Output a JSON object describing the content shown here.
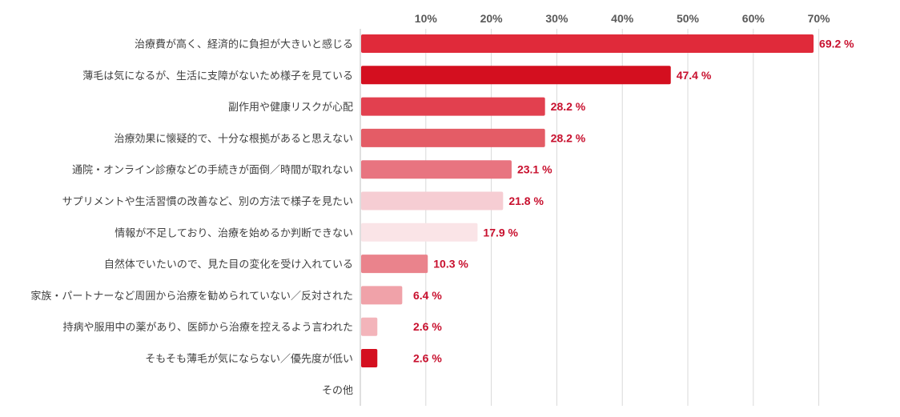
{
  "chart_data": {
    "type": "bar",
    "orientation": "horizontal",
    "title": "",
    "xlabel": "",
    "ylabel": "",
    "xlim": [
      0,
      70
    ],
    "tick_values": [
      10,
      20,
      30,
      40,
      50,
      60,
      70
    ],
    "tick_labels": [
      "10%",
      "20%",
      "30%",
      "40%",
      "50%",
      "60%",
      "70%"
    ],
    "grid": true,
    "value_suffix": " %",
    "categories": [
      "治療費が高く、経済的に負担が大きいと感じる",
      "薄毛は気になるが、生活に支障がないため様子を見ている",
      "副作用や健康リスクが心配",
      "治療効果に懐疑的で、十分な根拠があると思えない",
      "通院・オンライン診療などの手続きが面倒／時間が取れない",
      "サプリメントや生活習慣の改善など、別の方法で様子を見たい",
      "情報が不足しており、治療を始めるか判断できない",
      "自然体でいたいので、見た目の変化を受け入れている",
      "家族・パートナーなど周囲から治療を勧められていない／反対された",
      "持病や服用中の薬があり、医師から治療を控えるよう言われた",
      "そもそも薄毛が気にならない／優先度が低い",
      "その他"
    ],
    "values": [
      69.2,
      47.4,
      28.2,
      28.2,
      23.1,
      21.8,
      17.9,
      10.3,
      6.4,
      2.6,
      2.6,
      null
    ],
    "value_labels": [
      "69.2 %",
      "47.4 %",
      "28.2 %",
      "28.2 %",
      "23.1 %",
      "21.8 %",
      "17.9 %",
      "10.3 %",
      "6.4 %",
      "2.6 %",
      "2.6 %",
      ""
    ],
    "colors": [
      "#e02a3a",
      "#d40f1f",
      "#e2404f",
      "#e45c66",
      "#e87480",
      "#f6cdd3",
      "#fae4e7",
      "#ea838c",
      "#f0a2a9",
      "#f3b4ba",
      "#d40f1f",
      "#ffffff"
    ]
  }
}
